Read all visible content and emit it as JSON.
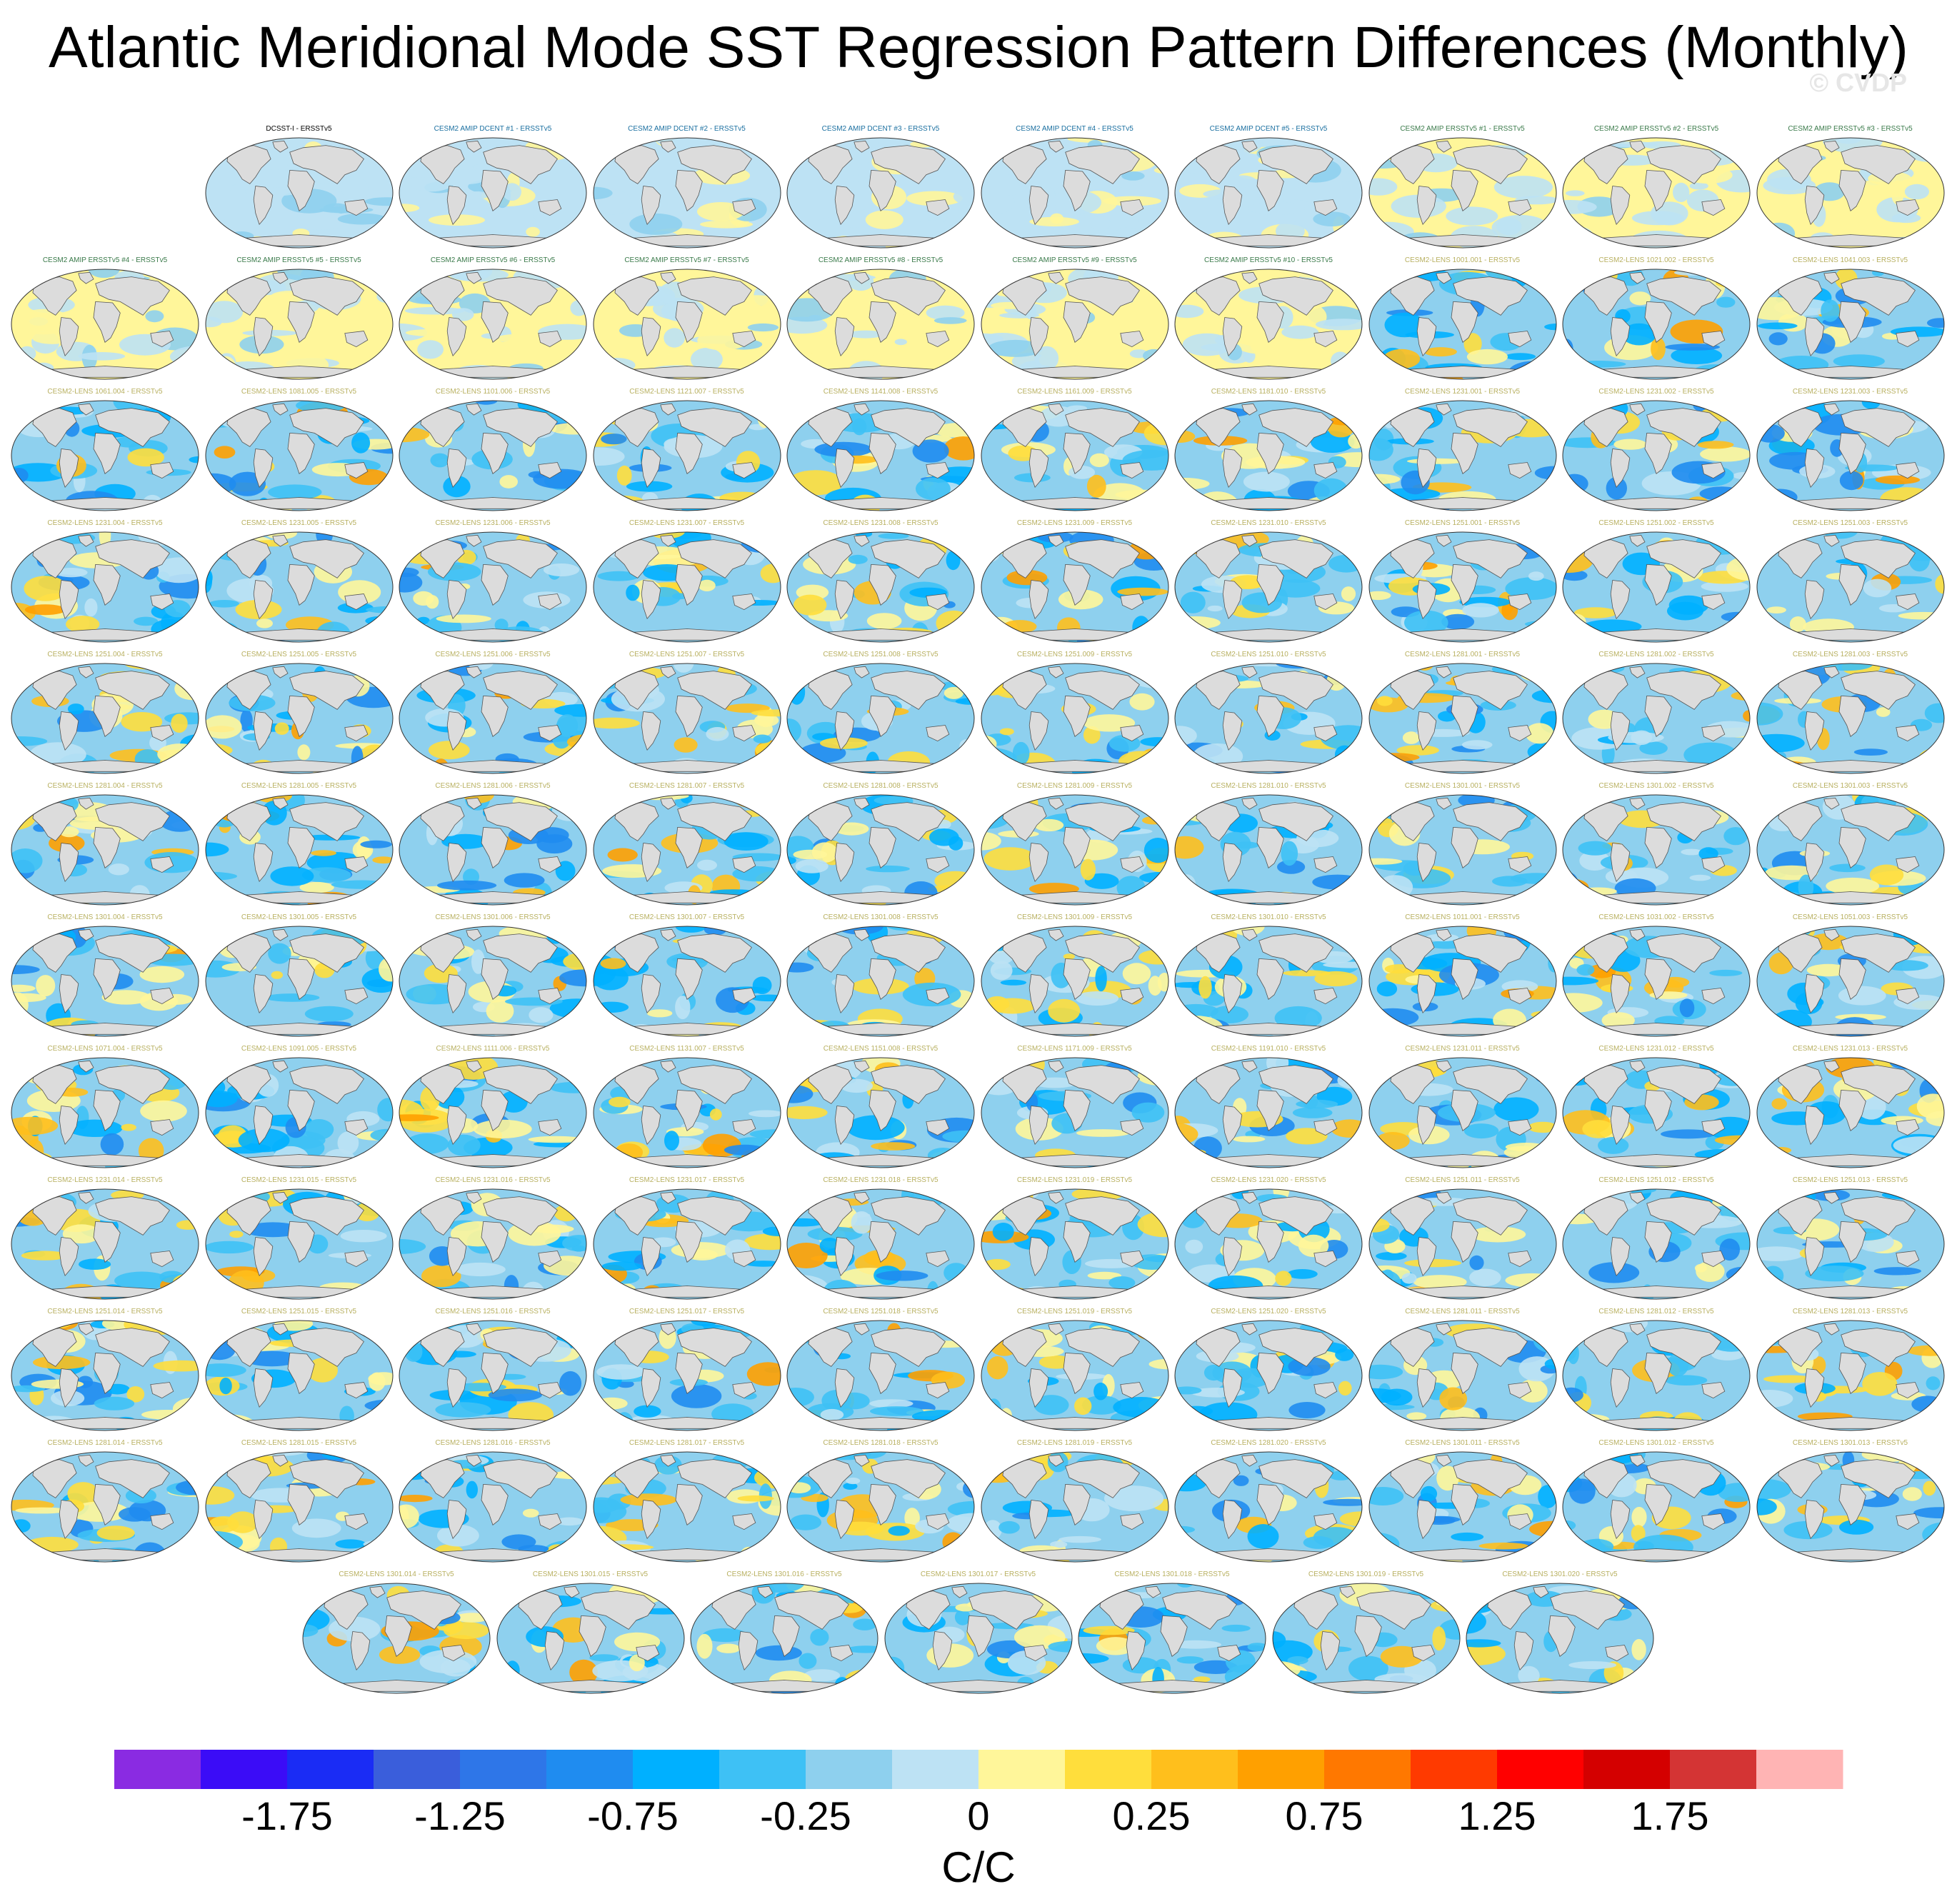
{
  "header": {
    "title": "Atlantic Meridional Mode SST Regression Pattern Differences (Monthly)",
    "watermark": "© CVDP"
  },
  "chart_data": {
    "type": "heatmap",
    "title": "Atlantic Meridional Mode SST Regression Pattern Differences (Monthly)",
    "projection": "Robinson global map panels",
    "units": "C/C",
    "colorbar": {
      "levels": [
        -2,
        -1.75,
        -1.5,
        -1.25,
        -1,
        -0.75,
        -0.5,
        -0.25,
        0,
        0.25,
        0.5,
        0.75,
        1,
        1.25,
        1.5,
        1.75,
        2
      ],
      "colors": [
        "#8a2be2",
        "#3b0cf7",
        "#1a2cf5",
        "#3a5edb",
        "#2e76e8",
        "#1f8cf0",
        "#00b0ff",
        "#3ec1f5",
        "#8ed0ee",
        "#bde2f4",
        "#fff69a",
        "#ffde3c",
        "#ffbf1c",
        "#ffa000",
        "#ff7800",
        "#ff3a00",
        "#ff0000",
        "#d40000",
        "#d43434",
        "#ffb4b4"
      ],
      "tick_labels": [
        "-1.75",
        "-1.25",
        "-0.75",
        "-0.25",
        "0",
        "0.25",
        "0.75",
        "1.25",
        "1.75"
      ]
    },
    "panels": [
      "DCSST-I - ERSSTv5",
      "CESM2 AMIP DCENT #1 - ERSSTv5",
      "CESM2 AMIP DCENT #2 - ERSSTv5",
      "CESM2 AMIP DCENT #3 - ERSSTv5",
      "CESM2 AMIP DCENT #4 - ERSSTv5",
      "CESM2 AMIP DCENT #5 - ERSSTv5",
      "CESM2 AMIP ERSSTv5 #1 - ERSSTv5",
      "CESM2 AMIP ERSSTv5 #2 - ERSSTv5",
      "CESM2 AMIP ERSSTv5 #3 - ERSSTv5",
      "CESM2 AMIP ERSSTv5 #4 - ERSSTv5",
      "CESM2 AMIP ERSSTv5 #5 - ERSSTv5",
      "CESM2 AMIP ERSSTv5 #6 - ERSSTv5",
      "CESM2 AMIP ERSSTv5 #7 - ERSSTv5",
      "CESM2 AMIP ERSSTv5 #8 - ERSSTv5",
      "CESM2 AMIP ERSSTv5 #9 - ERSSTv5",
      "CESM2 AMIP ERSSTv5 #10 - ERSSTv5",
      "CESM2-LENS 1001.001 - ERSSTv5",
      "CESM2-LENS 1021.002 - ERSSTv5",
      "CESM2-LENS 1041.003 - ERSSTv5",
      "CESM2-LENS 1061.004 - ERSSTv5",
      "CESM2-LENS 1081.005 - ERSSTv5",
      "CESM2-LENS 1101.006 - ERSSTv5",
      "CESM2-LENS 1121.007 - ERSSTv5",
      "CESM2-LENS 1141.008 - ERSSTv5",
      "CESM2-LENS 1161.009 - ERSSTv5",
      "CESM2-LENS 1181.010 - ERSSTv5",
      "CESM2-LENS 1231.001 - ERSSTv5",
      "CESM2-LENS 1231.002 - ERSSTv5",
      "CESM2-LENS 1231.003 - ERSSTv5",
      "CESM2-LENS 1231.004 - ERSSTv5",
      "CESM2-LENS 1231.005 - ERSSTv5",
      "CESM2-LENS 1231.006 - ERSSTv5",
      "CESM2-LENS 1231.007 - ERSSTv5",
      "CESM2-LENS 1231.008 - ERSSTv5",
      "CESM2-LENS 1231.009 - ERSSTv5",
      "CESM2-LENS 1231.010 - ERSSTv5",
      "CESM2-LENS 1251.001 - ERSSTv5",
      "CESM2-LENS 1251.002 - ERSSTv5",
      "CESM2-LENS 1251.003 - ERSSTv5",
      "CESM2-LENS 1251.004 - ERSSTv5",
      "CESM2-LENS 1251.005 - ERSSTv5",
      "CESM2-LENS 1251.006 - ERSSTv5",
      "CESM2-LENS 1251.007 - ERSSTv5",
      "CESM2-LENS 1251.008 - ERSSTv5",
      "CESM2-LENS 1251.009 - ERSSTv5",
      "CESM2-LENS 1251.010 - ERSSTv5",
      "CESM2-LENS 1281.001 - ERSSTv5",
      "CESM2-LENS 1281.002 - ERSSTv5",
      "CESM2-LENS 1281.003 - ERSSTv5",
      "CESM2-LENS 1281.004 - ERSSTv5",
      "CESM2-LENS 1281.005 - ERSSTv5",
      "CESM2-LENS 1281.006 - ERSSTv5",
      "CESM2-LENS 1281.007 - ERSSTv5",
      "CESM2-LENS 1281.008 - ERSSTv5",
      "CESM2-LENS 1281.009 - ERSSTv5",
      "CESM2-LENS 1281.010 - ERSSTv5",
      "CESM2-LENS 1301.001 - ERSSTv5",
      "CESM2-LENS 1301.002 - ERSSTv5",
      "CESM2-LENS 1301.003 - ERSSTv5",
      "CESM2-LENS 1301.004 - ERSSTv5",
      "CESM2-LENS 1301.005 - ERSSTv5",
      "CESM2-LENS 1301.006 - ERSSTv5",
      "CESM2-LENS 1301.007 - ERSSTv5",
      "CESM2-LENS 1301.008 - ERSSTv5",
      "CESM2-LENS 1301.009 - ERSSTv5",
      "CESM2-LENS 1301.010 - ERSSTv5",
      "CESM2-LENS 1011.001 - ERSSTv5",
      "CESM2-LENS 1031.002 - ERSSTv5",
      "CESM2-LENS 1051.003 - ERSSTv5",
      "CESM2-LENS 1071.004 - ERSSTv5",
      "CESM2-LENS 1091.005 - ERSSTv5",
      "CESM2-LENS 1111.006 - ERSSTv5",
      "CESM2-LENS 1131.007 - ERSSTv5",
      "CESM2-LENS 1151.008 - ERSSTv5",
      "CESM2-LENS 1171.009 - ERSSTv5",
      "CESM2-LENS 1191.010 - ERSSTv5",
      "CESM2-LENS 1231.011 - ERSSTv5",
      "CESM2-LENS 1231.012 - ERSSTv5",
      "CESM2-LENS 1231.013 - ERSSTv5",
      "CESM2-LENS 1231.014 - ERSSTv5",
      "CESM2-LENS 1231.015 - ERSSTv5",
      "CESM2-LENS 1231.016 - ERSSTv5",
      "CESM2-LENS 1231.017 - ERSSTv5",
      "CESM2-LENS 1231.018 - ERSSTv5",
      "CESM2-LENS 1231.019 - ERSSTv5",
      "CESM2-LENS 1231.020 - ERSSTv5",
      "CESM2-LENS 1251.011 - ERSSTv5",
      "CESM2-LENS 1251.012 - ERSSTv5",
      "CESM2-LENS 1251.013 - ERSSTv5",
      "CESM2-LENS 1251.014 - ERSSTv5",
      "CESM2-LENS 1251.015 - ERSSTv5",
      "CESM2-LENS 1251.016 - ERSSTv5",
      "CESM2-LENS 1251.017 - ERSSTv5",
      "CESM2-LENS 1251.018 - ERSSTv5",
      "CESM2-LENS 1251.019 - ERSSTv5",
      "CESM2-LENS 1251.020 - ERSSTv5",
      "CESM2-LENS 1281.011 - ERSSTv5",
      "CESM2-LENS 1281.012 - ERSSTv5",
      "CESM2-LENS 1281.013 - ERSSTv5",
      "CESM2-LENS 1281.014 - ERSSTv5",
      "CESM2-LENS 1281.015 - ERSSTv5",
      "CESM2-LENS 1281.016 - ERSSTv5",
      "CESM2-LENS 1281.017 - ERSSTv5",
      "CESM2-LENS 1281.018 - ERSSTv5",
      "CESM2-LENS 1281.019 - ERSSTv5",
      "CESM2-LENS 1281.020 - ERSSTv5",
      "CESM2-LENS 1301.011 - ERSSTv5",
      "CESM2-LENS 1301.012 - ERSSTv5",
      "CESM2-LENS 1301.013 - ERSSTv5",
      "CESM2-LENS 1301.014 - ERSSTv5",
      "CESM2-LENS 1301.015 - ERSSTv5",
      "CESM2-LENS 1301.016 - ERSSTv5",
      "CESM2-LENS 1301.017 - ERSSTv5",
      "CESM2-LENS 1301.018 - ERSSTv5",
      "CESM2-LENS 1301.019 - ERSSTv5",
      "CESM2-LENS 1301.020 - ERSSTv5"
    ],
    "panel_title_colors": {
      "observations": "#000000",
      "amip_dcent": "#1a6fa0",
      "amip_ersst": "#3a7a4a",
      "lens": "#b8b060"
    }
  }
}
